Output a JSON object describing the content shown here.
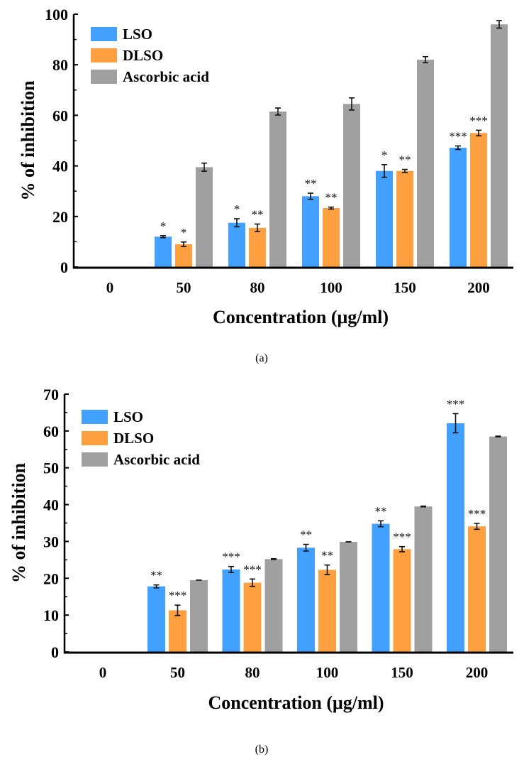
{
  "chart_data": [
    {
      "type": "bar",
      "panel_label": "(a)",
      "xlabel": "Concentration (μg/ml)",
      "ylabel": "% of inhibition",
      "ylim": [
        0,
        100
      ],
      "yticks": [
        0,
        20,
        40,
        60,
        80,
        100
      ],
      "legend_position": "top-left",
      "categories": [
        "0",
        "50",
        "80",
        "100",
        "150",
        "200"
      ],
      "series": [
        {
          "name": "LSO",
          "color": "#42a0fe",
          "values": [
            0,
            12,
            17.5,
            28,
            38,
            47.2
          ],
          "errors": [
            0,
            0.4,
            1.6,
            1.2,
            2.5,
            0.7
          ],
          "significance": [
            "",
            "*",
            "*",
            "**",
            "*",
            "***"
          ]
        },
        {
          "name": "DLSO",
          "color": "#ffa040",
          "values": [
            0,
            9,
            15.5,
            23.3,
            38,
            53
          ],
          "errors": [
            0,
            0.9,
            1.5,
            0.4,
            0.6,
            1.1
          ],
          "significance": [
            "",
            "*",
            "**",
            "**",
            "**",
            "***"
          ]
        },
        {
          "name": "Ascorbic acid",
          "color": "#a0a0a0",
          "values": [
            0,
            39.5,
            61.5,
            64.5,
            82,
            96
          ],
          "errors": [
            0,
            1.6,
            1.4,
            2.4,
            1.2,
            1.5
          ],
          "significance": [
            "",
            "",
            "",
            "",
            "",
            ""
          ]
        }
      ]
    },
    {
      "type": "bar",
      "panel_label": "(b)",
      "xlabel": "Concentration (μg/ml)",
      "ylabel": "% of inhibition",
      "ylim": [
        0,
        70
      ],
      "yticks": [
        0,
        10,
        20,
        30,
        40,
        50,
        60,
        70
      ],
      "legend_position": "top-left",
      "categories": [
        "0",
        "50",
        "80",
        "100",
        "150",
        "200"
      ],
      "series": [
        {
          "name": "LSO",
          "color": "#42a0fe",
          "values": [
            0,
            17.8,
            22.4,
            28.3,
            34.8,
            62.1
          ],
          "errors": [
            0,
            0.4,
            0.8,
            0.9,
            0.8,
            2.6
          ],
          "significance": [
            "",
            "**",
            "***",
            "**",
            "**",
            "***"
          ]
        },
        {
          "name": "DLSO",
          "color": "#ffa040",
          "values": [
            0,
            11.3,
            18.8,
            22.3,
            27.9,
            34.1
          ],
          "errors": [
            0,
            1.4,
            1.0,
            1.3,
            0.7,
            0.8
          ],
          "significance": [
            "",
            "***",
            "***",
            "**",
            "***",
            "***"
          ]
        },
        {
          "name": "Ascorbic acid",
          "color": "#a0a0a0",
          "values": [
            0,
            19.5,
            25.2,
            29.9,
            39.5,
            58.5
          ],
          "errors": [
            0,
            0,
            0.1,
            0,
            0.1,
            0.1
          ],
          "significance": [
            "",
            "",
            "",
            "",
            "",
            ""
          ]
        }
      ]
    }
  ]
}
